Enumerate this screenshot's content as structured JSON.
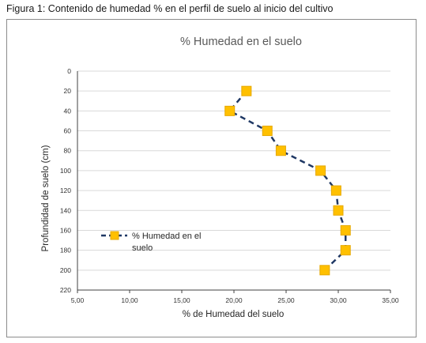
{
  "caption": "Figura 1: Contenido de humedad % en el perfil de suelo al inicio del cultivo",
  "colors": {
    "line": "#1f3864",
    "marker_fill": "#ffc000",
    "marker_stroke": "#e6a800",
    "grid": "#d9d9d9",
    "axis": "#404040"
  },
  "chart_data": {
    "type": "line",
    "title": "% Humedad en el suelo",
    "xlabel": "% de Humedad del suelo",
    "ylabel": "Profundidad de suelo (cm)",
    "xlim": [
      5,
      35
    ],
    "ylim": [
      220,
      0
    ],
    "y_inverted": true,
    "x_ticks": [
      "5,00",
      "10,00",
      "15,00",
      "20,00",
      "25,00",
      "30,00",
      "35,00"
    ],
    "x_tick_values": [
      5,
      10,
      15,
      20,
      25,
      30,
      35
    ],
    "y_ticks": [
      "0",
      "20",
      "40",
      "60",
      "80",
      "100",
      "120",
      "140",
      "160",
      "180",
      "200",
      "220"
    ],
    "y_tick_values": [
      0,
      20,
      40,
      60,
      80,
      100,
      120,
      140,
      160,
      180,
      200,
      220
    ],
    "grid": "horizontal",
    "legend_position": "left, lower-middle",
    "series": [
      {
        "name": "% Humedad en el suelo",
        "line_style": "dashed",
        "marker": "square",
        "x": [
          21.2,
          19.6,
          23.2,
          24.5,
          28.3,
          29.8,
          30.0,
          30.7,
          30.7,
          28.7
        ],
        "y": [
          20,
          40,
          60,
          80,
          100,
          120,
          140,
          160,
          180,
          200
        ]
      }
    ],
    "legend": {
      "lines": [
        "% Humedad en el",
        "suelo"
      ]
    }
  }
}
